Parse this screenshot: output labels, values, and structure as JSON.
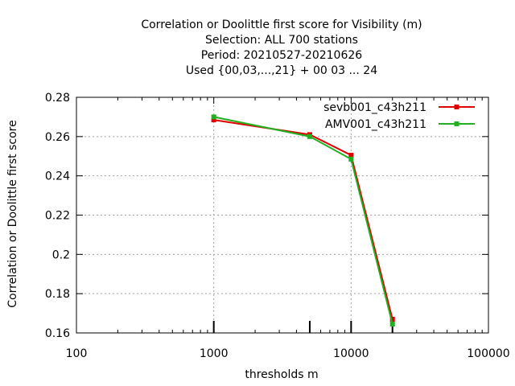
{
  "chart_data": {
    "type": "line",
    "title_lines": [
      "Correlation or Doolittle first score  for Visibility (m)",
      "Selection: ALL    700 stations",
      "Period: 20210527-20210626",
      "Used {00,03,...,21} + 00 03 ... 24"
    ],
    "xlabel": "thresholds m",
    "ylabel": "Correlation or Doolittle first score",
    "xscale": "log",
    "xlim": [
      100,
      100000
    ],
    "ylim": [
      0.16,
      0.28
    ],
    "x_ticks": [
      100,
      1000,
      10000,
      100000
    ],
    "x_tick_labels": [
      "100",
      "1000",
      "10000",
      "100000"
    ],
    "y_ticks": [
      0.16,
      0.18,
      0.2,
      0.22,
      0.24,
      0.26,
      0.28
    ],
    "y_tick_labels": [
      "0.16",
      "0.18",
      "0.2",
      "0.22",
      "0.24",
      "0.26",
      "0.28"
    ],
    "grid": true,
    "legend_position": "top-right",
    "threshold_markers": [
      1000,
      5000,
      10000,
      20000
    ],
    "series": [
      {
        "name": "sevb001_c43h211",
        "color": "#e00000",
        "x": [
          1000,
          5000,
          10000,
          20000
        ],
        "y": [
          0.2685,
          0.261,
          0.2505,
          0.167
        ]
      },
      {
        "name": "AMV001_c43h211",
        "color": "#20b020",
        "x": [
          1000,
          5000,
          10000,
          20000
        ],
        "y": [
          0.27,
          0.26,
          0.2485,
          0.1645
        ]
      }
    ]
  }
}
